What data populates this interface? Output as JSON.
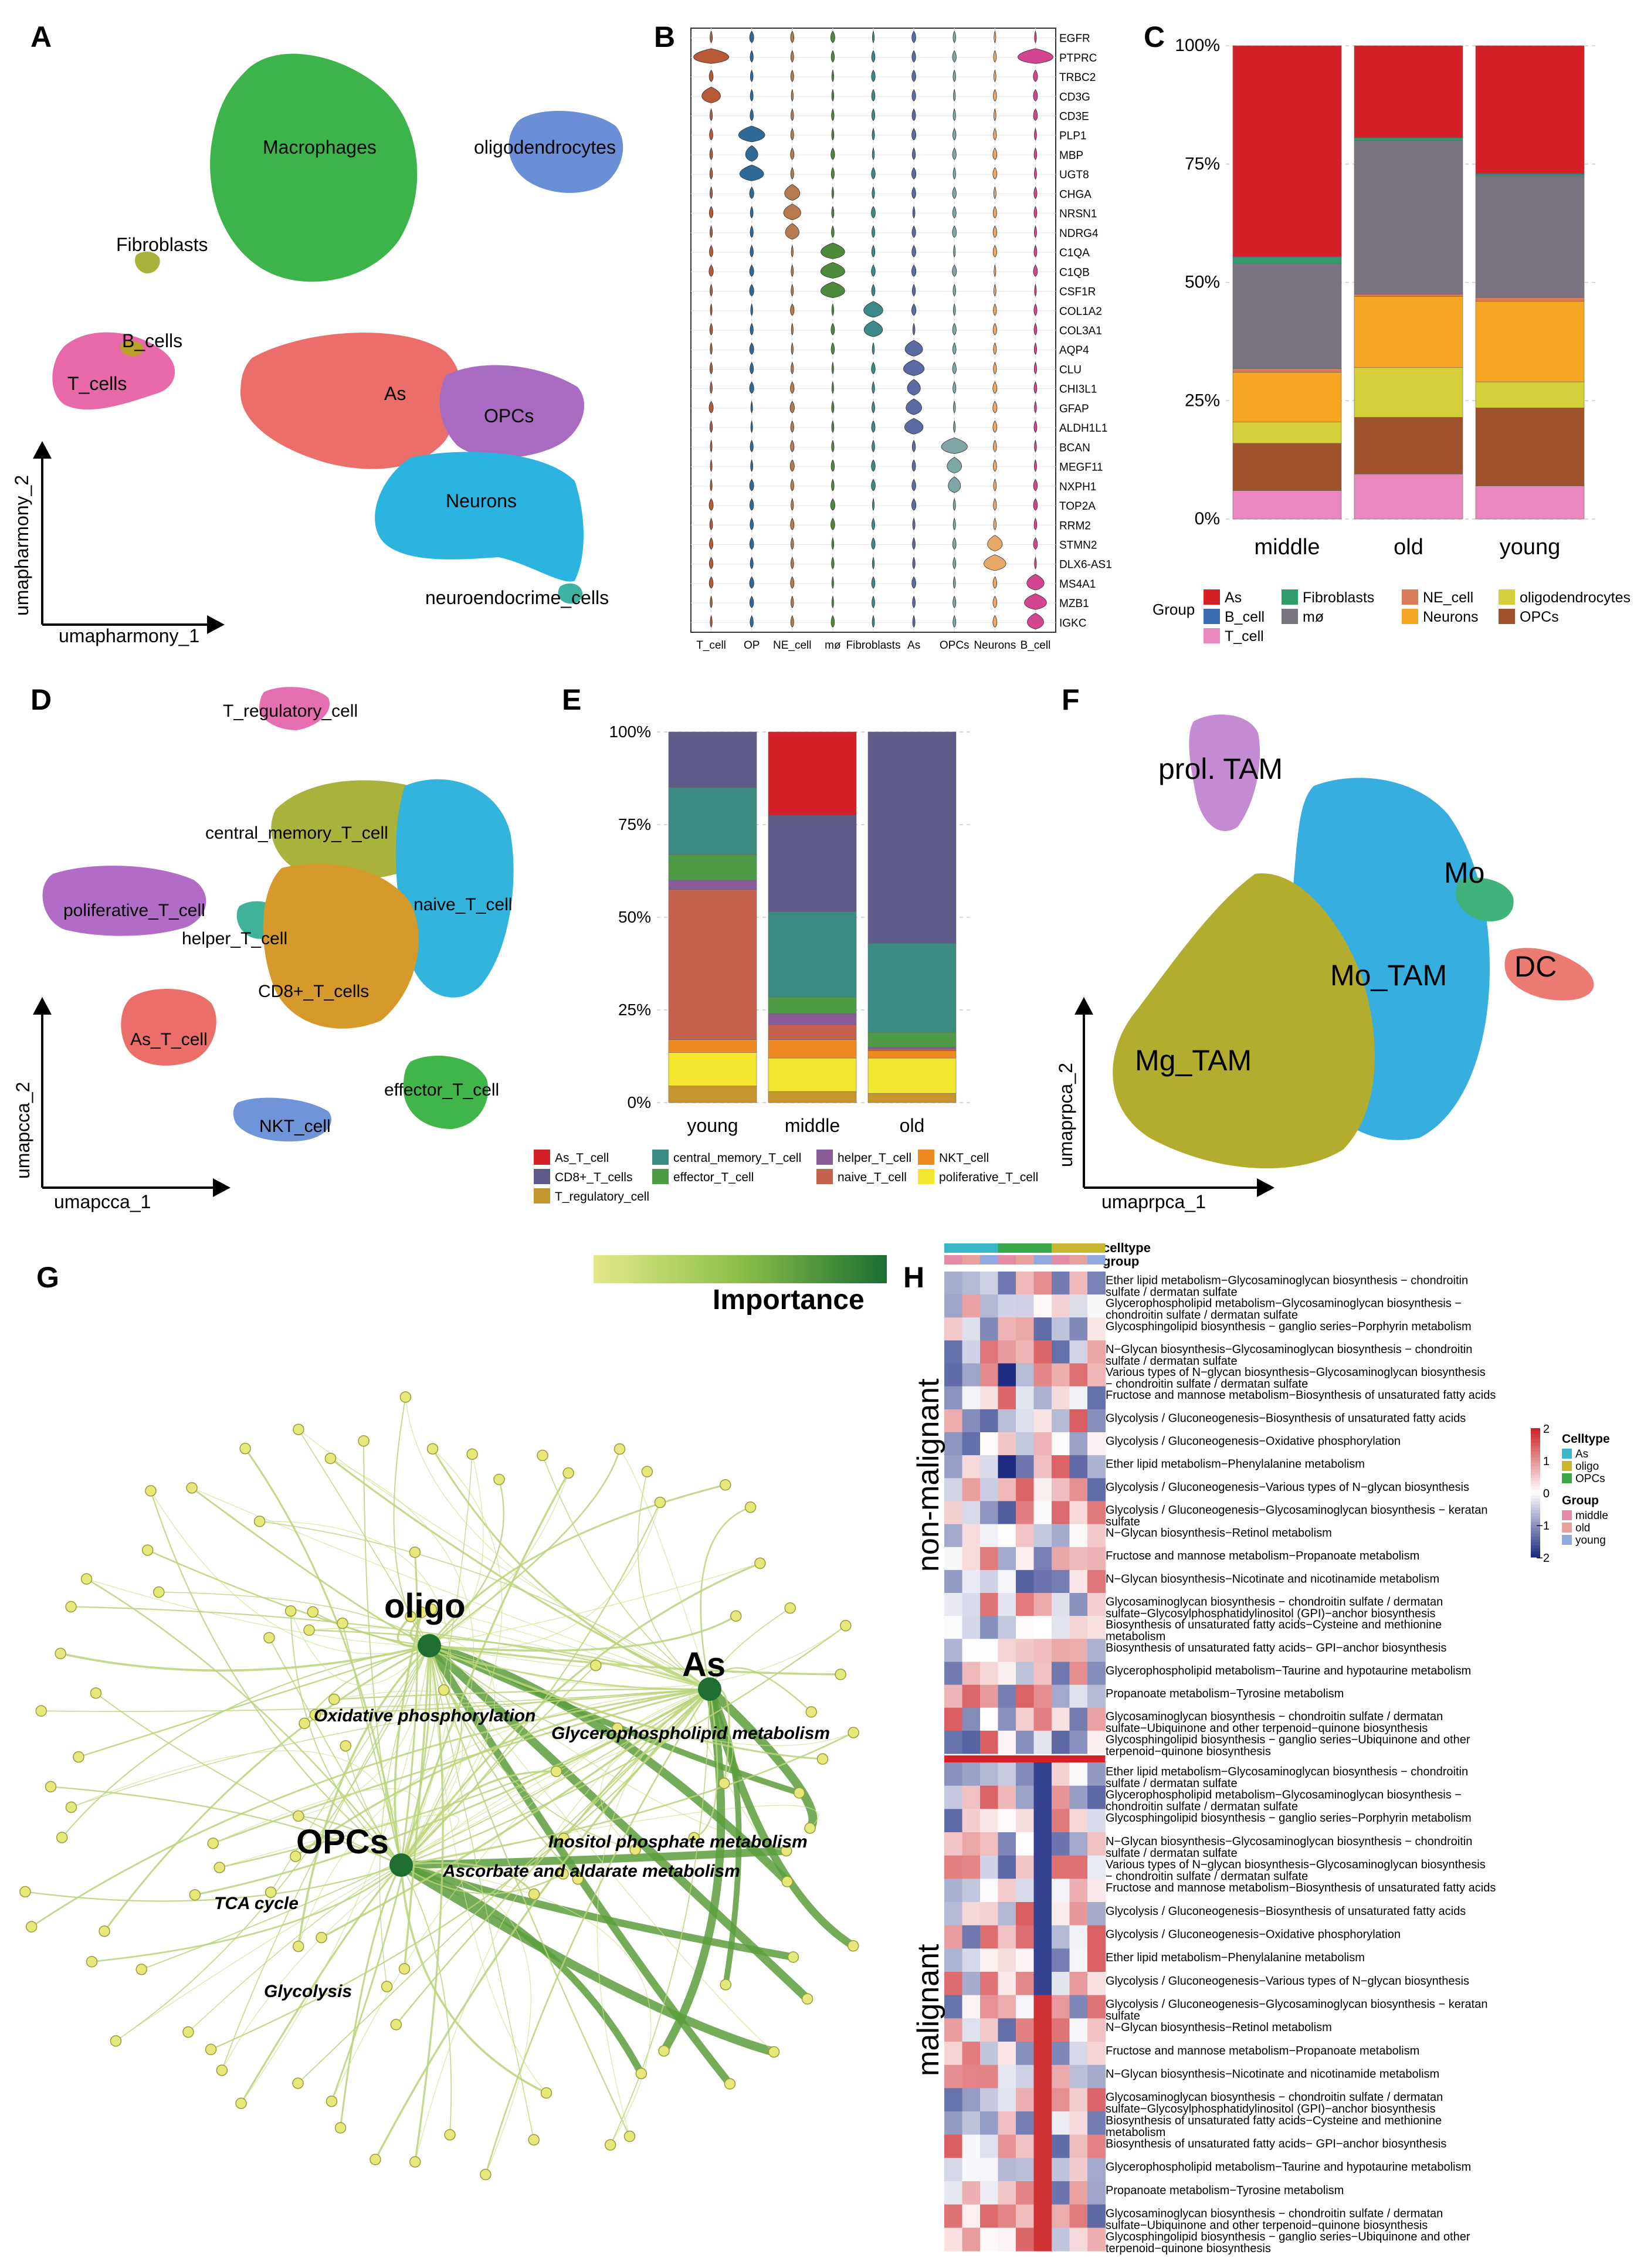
{
  "panel_letters": [
    "A",
    "B",
    "C",
    "D",
    "E",
    "F",
    "G",
    "H"
  ],
  "panelA": {
    "xlabel": "umapharmony_1",
    "ylabel": "umapharmony_2",
    "clusters": [
      {
        "label": "Macrophages",
        "color": "#3cb44b"
      },
      {
        "label": "oligodendrocytes",
        "color": "#6a8fd6"
      },
      {
        "label": "Fibroblasts",
        "color": "#a8b13a"
      },
      {
        "label": "B_cells",
        "color": "#b8a02a"
      },
      {
        "label": "T_cells",
        "color": "#e769a8"
      },
      {
        "label": "As",
        "color": "#ec6e6a"
      },
      {
        "label": "OPCs",
        "color": "#a96bc1"
      },
      {
        "label": "Neurons",
        "color": "#2cb4e0"
      },
      {
        "label": "neuroendocrime_cells",
        "color": "#3fb3a3"
      }
    ]
  },
  "panelB": {
    "genes": [
      "EGFR",
      "PTPRC",
      "TRBC2",
      "CD3G",
      "CD3E",
      "PLP1",
      "MBP",
      "UGT8",
      "CHGA",
      "NRSN1",
      "NDRG4",
      "C1QA",
      "C1QB",
      "CSF1R",
      "COL1A2",
      "COL3A1",
      "AQP4",
      "CLU",
      "CHI3L1",
      "GFAP",
      "ALDH1L1",
      "BCAN",
      "MEGF11",
      "NXPH1",
      "TOP2A",
      "RRM2",
      "STMN2",
      "DLX6-AS1",
      "MS4A1",
      "MZB1",
      "IGKC"
    ],
    "celltypes": [
      "T_cell",
      "OP",
      "NE_cell",
      "mø",
      "Fibroblasts",
      "As",
      "OPCs",
      "Neurons",
      "B_cell"
    ],
    "colors": [
      "#b85a36",
      "#2e6a97",
      "#b77a4c",
      "#4e8a3c",
      "#3b8a88",
      "#5b6aa0",
      "#7fa6a6",
      "#e8a868",
      "#d3458f"
    ]
  },
  "chart_data": [
    {
      "id": "C",
      "type": "bar",
      "stacked": true,
      "categories": [
        "middle",
        "old",
        "young"
      ],
      "ytick_labels": [
        "0%",
        "25%",
        "50%",
        "75%",
        "100%"
      ],
      "legend_title": "Group",
      "legend_items": [
        {
          "name": "As",
          "color": "#d62027"
        },
        {
          "name": "B_cell",
          "color": "#3b6bb0"
        },
        {
          "name": "T_cell",
          "color": "#ea88bd"
        },
        {
          "name": "Fibroblasts",
          "color": "#2e9d6a"
        },
        {
          "name": "mø",
          "color": "#7a7480"
        },
        {
          "name": "NE_cell",
          "color": "#d97b57"
        },
        {
          "name": "Neurons",
          "color": "#f5a623"
        },
        {
          "name": "oligodendrocytes",
          "color": "#d4cf3a"
        },
        {
          "name": "OPCs",
          "color": "#a0522d"
        }
      ],
      "stack_order": [
        "T_cell",
        "OPCs",
        "oligodendrocytes",
        "Neurons",
        "NE_cell",
        "mø",
        "Fibroblasts",
        "B_cell",
        "As"
      ],
      "series": [
        {
          "name": "T_cell",
          "values": [
            6,
            9.5,
            7
          ]
        },
        {
          "name": "OPCs",
          "values": [
            10,
            12,
            16.5
          ]
        },
        {
          "name": "oligodendrocytes",
          "values": [
            4.5,
            10.5,
            5.5
          ]
        },
        {
          "name": "Neurons",
          "values": [
            10.5,
            15,
            17
          ]
        },
        {
          "name": "NE_cell",
          "values": [
            0.8,
            0.5,
            0.8
          ]
        },
        {
          "name": "mø",
          "values": [
            22.2,
            32.5,
            25.7
          ]
        },
        {
          "name": "Fibroblasts",
          "values": [
            1.3,
            0.5,
            0.3
          ]
        },
        {
          "name": "B_cell",
          "values": [
            0.2,
            0.1,
            0.2
          ]
        },
        {
          "name": "As",
          "values": [
            44.5,
            19.4,
            27
          ]
        }
      ],
      "ylim": [
        0,
        100
      ]
    },
    {
      "id": "E",
      "type": "bar",
      "stacked": true,
      "categories": [
        "young",
        "middle",
        "old"
      ],
      "ytick_labels": [
        "0%",
        "25%",
        "50%",
        "75%",
        "100%"
      ],
      "legend_items": [
        {
          "name": "As_T_cell",
          "color": "#d62027"
        },
        {
          "name": "CD8+_T_cells",
          "color": "#5e5a8a"
        },
        {
          "name": "T_regulatory_cell",
          "color": "#c6962e"
        },
        {
          "name": "central_memory_T_cell",
          "color": "#3a8c80"
        },
        {
          "name": "effector_T_cell",
          "color": "#4e9a47"
        },
        {
          "name": "helper_T_cell",
          "color": "#8a5b9a"
        },
        {
          "name": "naive_T_cell",
          "color": "#c4624e"
        },
        {
          "name": "NKT_cell",
          "color": "#ef8a23"
        },
        {
          "name": "poliferative_T_cell",
          "color": "#f4e52e"
        }
      ],
      "stack_order": [
        "T_regulatory_cell",
        "poliferative_T_cell",
        "NKT_cell",
        "naive_T_cell",
        "helper_T_cell",
        "effector_T_cell",
        "central_memory_T_cell",
        "CD8+_T_cells",
        "As_T_cell"
      ],
      "series": [
        {
          "name": "T_regulatory_cell",
          "values": [
            4.5,
            3,
            2.5
          ]
        },
        {
          "name": "poliferative_T_cell",
          "values": [
            9,
            9,
            9.5
          ]
        },
        {
          "name": "NKT_cell",
          "values": [
            3.5,
            5,
            2
          ]
        },
        {
          "name": "naive_T_cell",
          "values": [
            40.5,
            4,
            0.5
          ]
        },
        {
          "name": "helper_T_cell",
          "values": [
            2.5,
            3,
            0.5
          ]
        },
        {
          "name": "effector_T_cell",
          "values": [
            7,
            4.5,
            4
          ]
        },
        {
          "name": "central_memory_T_cell",
          "values": [
            18,
            23,
            24
          ]
        },
        {
          "name": "CD8+_T_cells",
          "values": [
            15,
            26,
            57
          ]
        },
        {
          "name": "As_T_cell",
          "values": [
            0,
            22.5,
            0
          ]
        }
      ],
      "ylim": [
        0,
        100
      ]
    }
  ],
  "panelD": {
    "xlabel": "umapcca_1",
    "ylabel": "umapcca_2",
    "clusters": [
      {
        "label": "T_regulatory_cell",
        "color": "#e56fb0"
      },
      {
        "label": "central_memory_T_cell",
        "color": "#a9b23a"
      },
      {
        "label": "poliferative_T_cell",
        "color": "#b06cc6"
      },
      {
        "label": "helper_T_cell",
        "color": "#3fb39a"
      },
      {
        "label": "naive_T_cell",
        "color": "#33b4dc"
      },
      {
        "label": "CD8+_T_cells",
        "color": "#d59a2b"
      },
      {
        "label": "As_T_cell",
        "color": "#ec6e6a"
      },
      {
        "label": "effector_T_cell",
        "color": "#3fb54a"
      },
      {
        "label": "NKT_cell",
        "color": "#6f94d8"
      }
    ]
  },
  "panelF": {
    "xlabel": "umaprpca_1",
    "ylabel": "umaprpca_2",
    "clusters": [
      {
        "label": "prol. TAM",
        "color": "#c58bd2"
      },
      {
        "label": "Mo",
        "color": "#3fb37a"
      },
      {
        "label": "Mo_TAM",
        "color": "#36aee0"
      },
      {
        "label": "DC",
        "color": "#ec7b74"
      },
      {
        "label": "Mg_TAM",
        "color": "#b2ad2e"
      }
    ]
  },
  "panelG": {
    "legend_title": "Importance",
    "hubs": [
      "oligo",
      "As",
      "OPCs"
    ],
    "pathways": [
      "Oxidative phosphorylation",
      "Glycerophospholipid metabolism",
      "Inositol phosphate metabolism",
      "Ascorbate and aldarate metabolism",
      "TCA cycle",
      "Glycolysis"
    ]
  },
  "panelH": {
    "annotation_labels": [
      "celltype",
      "group"
    ],
    "sections": [
      "non-malignant",
      "malignant"
    ],
    "row_labels": [
      "Ether lipid metabolism−Glycosaminoglycan biosynthesis − chondroitin sulfate / dermatan sulfate",
      "Glycerophospholipid metabolism−Glycosaminoglycan biosynthesis − chondroitin sulfate / dermatan sulfate",
      "Glycosphingolipid biosynthesis − ganglio series−Porphyrin metabolism",
      "N−Glycan biosynthesis−Glycosaminoglycan biosynthesis − chondroitin sulfate / dermatan sulfate",
      "Various types of N−glycan biosynthesis−Glycosaminoglycan biosynthesis − chondroitin sulfate / dermatan sulfate",
      "Fructose and mannose metabolism−Biosynthesis of unsaturated fatty acids",
      "Glycolysis / Gluconeogenesis−Biosynthesis of unsaturated fatty acids",
      "Glycolysis / Gluconeogenesis−Oxidative phosphorylation",
      "Ether lipid metabolism−Phenylalanine metabolism",
      "Glycolysis / Gluconeogenesis−Various types of N−glycan biosynthesis",
      "Glycolysis / Gluconeogenesis−Glycosaminoglycan biosynthesis − keratan sulfate",
      "N−Glycan biosynthesis−Retinol metabolism",
      "Fructose and mannose metabolism−Propanoate metabolism",
      "N−Glycan biosynthesis−Nicotinate and nicotinamide metabolism",
      "Glycosaminoglycan biosynthesis − chondroitin sulfate / dermatan sulfate−Glycosylphosphatidylinositol (GPI)−anchor biosynthesis",
      "Biosynthesis of unsaturated fatty acids−Cysteine and methionine metabolism",
      "Biosynthesis of unsaturated fatty acids− GPI−anchor biosynthesis",
      "Glycerophospholipid metabolism−Taurine and hypotaurine metabolism",
      "Propanoate metabolism−Tyrosine metabolism",
      "Glycosaminoglycan biosynthesis − chondroitin sulfate / dermatan sulfate−Ubiquinone and other terpenoid−quinone biosynthesis",
      "Glycosphingolipid biosynthesis − ganglio series−Ubiquinone and other terpenoid−quinone biosynthesis"
    ],
    "colorbar_ticks": [
      "2",
      "1",
      "0",
      "−1",
      "−2"
    ],
    "legend_celltype_title": "Celltype",
    "legend_celltype": [
      {
        "name": "As",
        "color": "#3ab7c8"
      },
      {
        "name": "oligo",
        "color": "#c8b52e"
      },
      {
        "name": "OPCs",
        "color": "#3aa74a"
      }
    ],
    "legend_group_title": "Group",
    "legend_group": [
      {
        "name": "middle",
        "color": "#e58aa5"
      },
      {
        "name": "old",
        "color": "#e8a09a"
      },
      {
        "name": "young",
        "color": "#8fa8e0"
      }
    ]
  }
}
